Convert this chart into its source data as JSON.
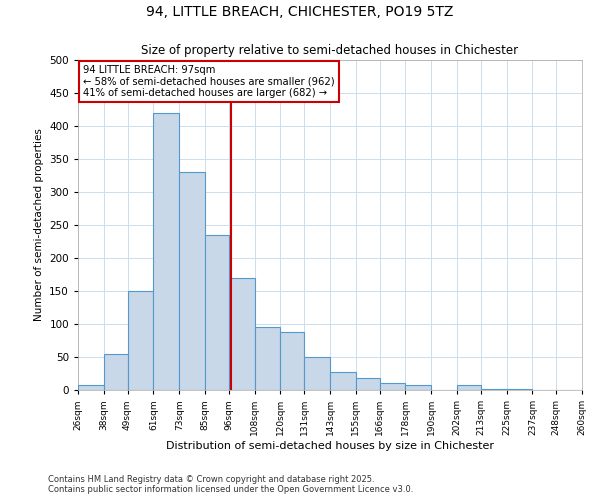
{
  "title": "94, LITTLE BREACH, CHICHESTER, PO19 5TZ",
  "subtitle": "Size of property relative to semi-detached houses in Chichester",
  "xlabel": "Distribution of semi-detached houses by size in Chichester",
  "ylabel": "Number of semi-detached properties",
  "bin_labels": [
    "26sqm",
    "38sqm",
    "49sqm",
    "61sqm",
    "73sqm",
    "85sqm",
    "96sqm",
    "108sqm",
    "120sqm",
    "131sqm",
    "143sqm",
    "155sqm",
    "166sqm",
    "178sqm",
    "190sqm",
    "202sqm",
    "213sqm",
    "225sqm",
    "237sqm",
    "248sqm",
    "260sqm"
  ],
  "bin_edges": [
    26,
    38,
    49,
    61,
    73,
    85,
    96,
    108,
    120,
    131,
    143,
    155,
    166,
    178,
    190,
    202,
    213,
    225,
    237,
    248,
    260
  ],
  "bar_values": [
    7,
    55,
    150,
    420,
    330,
    235,
    170,
    95,
    88,
    50,
    28,
    18,
    10,
    8,
    0,
    8,
    2,
    1,
    0,
    0
  ],
  "bar_color": "#c8d8e8",
  "bar_edge_color": "#5599cc",
  "property_line_x": 97,
  "property_line_color": "#cc0000",
  "annotation_title": "94 LITTLE BREACH: 97sqm",
  "annotation_line1": "← 58% of semi-detached houses are smaller (962)",
  "annotation_line2": "41% of semi-detached houses are larger (682) →",
  "annotation_box_color": "#ffffff",
  "annotation_box_edge_color": "#cc0000",
  "ylim": [
    0,
    500
  ],
  "yticks": [
    0,
    50,
    100,
    150,
    200,
    250,
    300,
    350,
    400,
    450,
    500
  ],
  "footer1": "Contains HM Land Registry data © Crown copyright and database right 2025.",
  "footer2": "Contains public sector information licensed under the Open Government Licence v3.0.",
  "background_color": "#ffffff",
  "grid_color": "#ccddee"
}
